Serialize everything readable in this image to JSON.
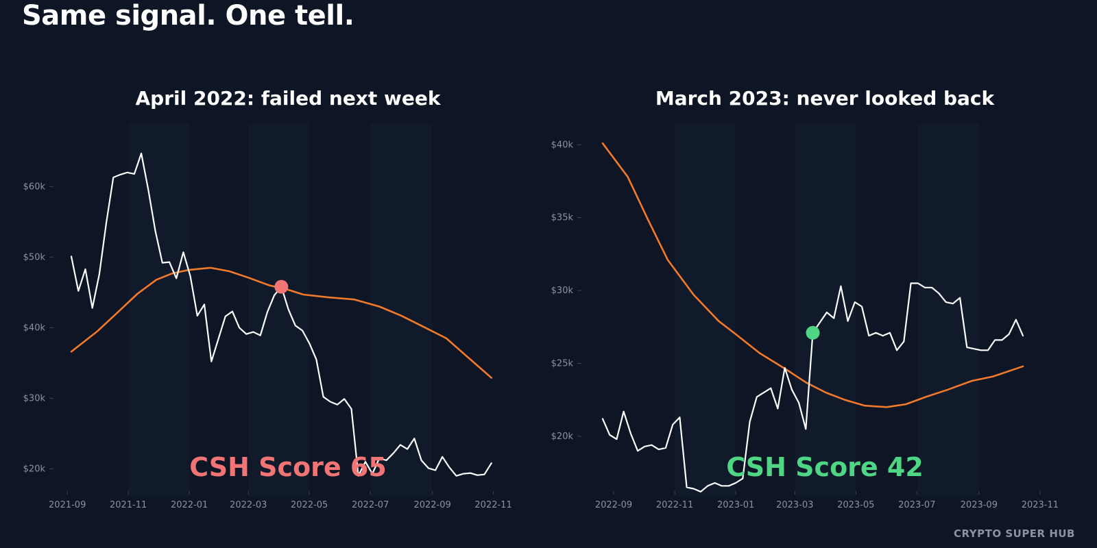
{
  "headline": "Same signal. One tell.",
  "footer_brand": "CRYPTO SUPER HUB",
  "colors": {
    "background": "#0e1524",
    "price_line": "#ffffff",
    "moving_average": "#f47a2b",
    "bearish": "#f27575",
    "bullish": "#4fd684",
    "tick_text": "#8b93a3"
  },
  "chart_data": [
    {
      "type": "line",
      "title": "April 2022: failed next week",
      "xlabel": "",
      "ylabel": "",
      "xlim": [
        "2021-08-25",
        "2022-11-15"
      ],
      "ylim": [
        18000,
        68000
      ],
      "x_ticks": [
        "2021-09",
        "2021-11",
        "2022-01",
        "2022-03",
        "2022-05",
        "2022-07",
        "2022-09",
        "2022-11"
      ],
      "y_ticks": [
        {
          "value": 20000,
          "label": "$20k"
        },
        {
          "value": 30000,
          "label": "$30k"
        },
        {
          "value": 40000,
          "label": "$40k"
        },
        {
          "value": 50000,
          "label": "$50k"
        },
        {
          "value": 60000,
          "label": "$60k"
        }
      ],
      "grid": false,
      "series": [
        {
          "color": "#ffffff",
          "x": [
            "2021-09-05",
            "2021-09-12",
            "2021-09-19",
            "2021-09-26",
            "2021-10-03",
            "2021-10-10",
            "2021-10-17",
            "2021-10-24",
            "2021-10-31",
            "2021-11-07",
            "2021-11-14",
            "2021-11-21",
            "2021-11-28",
            "2021-12-05",
            "2021-12-12",
            "2021-12-19",
            "2021-12-26",
            "2022-01-02",
            "2022-01-09",
            "2022-01-16",
            "2022-01-23",
            "2022-01-30",
            "2022-02-06",
            "2022-02-13",
            "2022-02-20",
            "2022-02-27",
            "2022-03-06",
            "2022-03-13",
            "2022-03-20",
            "2022-03-27",
            "2022-04-03",
            "2022-04-10",
            "2022-04-17",
            "2022-04-24",
            "2022-05-01",
            "2022-05-08",
            "2022-05-15",
            "2022-05-22",
            "2022-05-29",
            "2022-06-05",
            "2022-06-12",
            "2022-06-19",
            "2022-06-26",
            "2022-07-03",
            "2022-07-10",
            "2022-07-17",
            "2022-07-24",
            "2022-07-31",
            "2022-08-07",
            "2022-08-14",
            "2022-08-21",
            "2022-08-28",
            "2022-09-04",
            "2022-09-11",
            "2022-09-18",
            "2022-09-25",
            "2022-10-02",
            "2022-10-09",
            "2022-10-16",
            "2022-10-23",
            "2022-10-30"
          ],
          "values": [
            50100,
            45200,
            48300,
            42800,
            47600,
            54900,
            61300,
            61700,
            62000,
            61800,
            64700,
            59500,
            53700,
            49200,
            49300,
            47000,
            50700,
            47300,
            41700,
            43300,
            35200,
            38400,
            41600,
            42300,
            40000,
            39100,
            39400,
            38900,
            42200,
            44600,
            45800,
            42600,
            40300,
            39600,
            37800,
            35500,
            30200,
            29500,
            29100,
            29900,
            28500,
            19000,
            21000,
            19300,
            21500,
            21200,
            22200,
            23400,
            22800,
            24300,
            21200,
            20100,
            19800,
            21700,
            20200,
            19000,
            19300,
            19400,
            19100,
            19200,
            20800
          ]
        },
        {
          "color": "#f47a2b",
          "x": [
            "2021-09-05",
            "2021-10-01",
            "2021-10-20",
            "2021-11-10",
            "2021-11-29",
            "2021-12-15",
            "2022-01-01",
            "2022-01-22",
            "2022-02-10",
            "2022-03-01",
            "2022-03-22",
            "2022-04-07",
            "2022-04-25",
            "2022-05-20",
            "2022-06-15",
            "2022-07-10",
            "2022-08-01",
            "2022-08-25",
            "2022-09-15",
            "2022-10-05",
            "2022-10-30"
          ],
          "values": [
            36600,
            39500,
            42000,
            44800,
            46800,
            47700,
            48200,
            48500,
            48000,
            47100,
            46000,
            45500,
            44700,
            44300,
            44000,
            43000,
            41700,
            40000,
            38500,
            36000,
            32900
          ]
        }
      ],
      "marker": {
        "x": "2022-04-03",
        "y": 45800,
        "color": "#f27575"
      },
      "annotation": {
        "text": "CSH Score 65",
        "color": "#f27575"
      }
    },
    {
      "type": "line",
      "title": "March 2023: never looked back",
      "xlabel": "",
      "ylabel": "",
      "xlim": [
        "2022-08-08",
        "2023-11-10"
      ],
      "ylim": [
        16800,
        41000
      ],
      "x_ticks": [
        "2022-09",
        "2022-11",
        "2023-01",
        "2023-03",
        "2023-05",
        "2023-07",
        "2023-09",
        "2023-11"
      ],
      "y_ticks": [
        {
          "value": 20000,
          "label": "$20k"
        },
        {
          "value": 25000,
          "label": "$25k"
        },
        {
          "value": 30000,
          "label": "$30k"
        },
        {
          "value": 35000,
          "label": "$35k"
        },
        {
          "value": 40000,
          "label": "$40k"
        }
      ],
      "grid": false,
      "series": [
        {
          "color": "#ffffff",
          "x": [
            "2022-08-21",
            "2022-08-28",
            "2022-09-04",
            "2022-09-11",
            "2022-09-18",
            "2022-09-25",
            "2022-10-02",
            "2022-10-09",
            "2022-10-16",
            "2022-10-23",
            "2022-10-30",
            "2022-11-06",
            "2022-11-13",
            "2022-11-20",
            "2022-11-27",
            "2022-12-04",
            "2022-12-11",
            "2022-12-18",
            "2022-12-25",
            "2023-01-01",
            "2023-01-08",
            "2023-01-15",
            "2023-01-22",
            "2023-01-29",
            "2023-02-05",
            "2023-02-12",
            "2023-02-19",
            "2023-02-26",
            "2023-03-05",
            "2023-03-12",
            "2023-03-19",
            "2023-03-26",
            "2023-04-02",
            "2023-04-09",
            "2023-04-16",
            "2023-04-23",
            "2023-04-30",
            "2023-05-07",
            "2023-05-14",
            "2023-05-21",
            "2023-05-28",
            "2023-06-04",
            "2023-06-11",
            "2023-06-18",
            "2023-06-25",
            "2023-07-02",
            "2023-07-09",
            "2023-07-16",
            "2023-07-23",
            "2023-07-30",
            "2023-08-06",
            "2023-08-13",
            "2023-08-20",
            "2023-08-27",
            "2023-09-03",
            "2023-09-10",
            "2023-09-17",
            "2023-09-24",
            "2023-10-01",
            "2023-10-08",
            "2023-10-15"
          ],
          "values": [
            21200,
            20100,
            19800,
            21700,
            20200,
            19000,
            19300,
            19400,
            19100,
            19200,
            20800,
            21300,
            16500,
            16400,
            16200,
            16600,
            16800,
            16600,
            16600,
            16800,
            17100,
            21000,
            22700,
            23000,
            23300,
            21900,
            24700,
            23200,
            22300,
            20500,
            27100,
            27800,
            28500,
            28100,
            30300,
            27900,
            29200,
            28900,
            26900,
            27100,
            26900,
            27100,
            25900,
            26500,
            30500,
            30500,
            30200,
            30200,
            29800,
            29200,
            29100,
            29500,
            26100,
            26000,
            25900,
            25900,
            26600,
            26600,
            27000,
            28000,
            26900
          ]
        },
        {
          "color": "#f47a2b",
          "x": [
            "2022-08-21",
            "2022-09-15",
            "2022-10-05",
            "2022-10-25",
            "2022-11-20",
            "2022-12-15",
            "2023-01-01",
            "2023-01-25",
            "2023-02-20",
            "2023-03-12",
            "2023-04-01",
            "2023-04-20",
            "2023-05-10",
            "2023-06-01",
            "2023-06-20",
            "2023-07-10",
            "2023-08-01",
            "2023-08-25",
            "2023-09-15",
            "2023-10-15"
          ],
          "values": [
            40100,
            37800,
            34900,
            32100,
            29700,
            27900,
            27000,
            25700,
            24600,
            23700,
            23000,
            22500,
            22100,
            22000,
            22200,
            22700,
            23200,
            23800,
            24100,
            24800
          ]
        }
      ],
      "marker": {
        "x": "2023-03-19",
        "y": 27100,
        "color": "#4fd684"
      },
      "annotation": {
        "text": "CSH Score 42",
        "color": "#4fd684"
      }
    }
  ]
}
